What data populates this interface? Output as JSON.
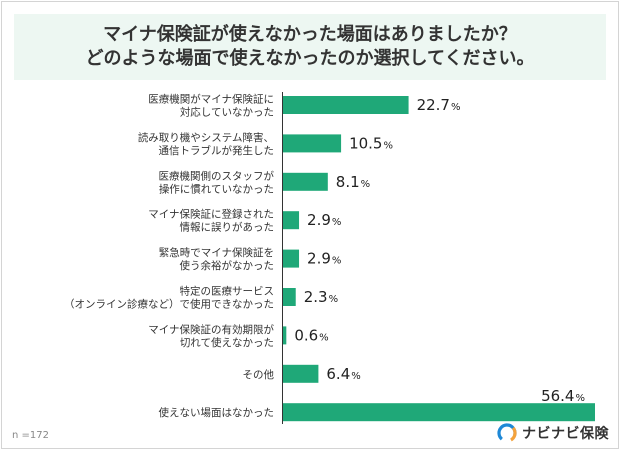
{
  "title": {
    "line1": "マイナ保険証が使えなかった場面はありましたか？",
    "line2": "どのような場面で使えなかったのか選択してください。"
  },
  "sample_note": "n =172",
  "brand": {
    "name": "ナビナビ保険",
    "accent_blue": "#1e88d6",
    "accent_orange": "#f4a23c"
  },
  "colors": {
    "bar": "#1fa878",
    "title_bg": "#edf7f2"
  },
  "chart_data": {
    "type": "bar",
    "orientation": "horizontal",
    "unit": "%",
    "xlim": [
      0,
      56.4
    ],
    "categories": [
      [
        "医療機関がマイナ保険証に",
        "対応していなかった"
      ],
      [
        "読み取り機やシステム障害、",
        "通信トラブルが発生した"
      ],
      [
        "医療機関側のスタッフが",
        "操作に慣れていなかった"
      ],
      [
        "マイナ保険証に登録された",
        "情報に誤りがあった"
      ],
      [
        "緊急時でマイナ保険証を",
        "使う余裕がなかった"
      ],
      [
        "特定の医療サービス",
        "（オンライン診療など）で使用できなかった"
      ],
      [
        "マイナ保険証の有効期限が",
        "切れて使えなかった"
      ],
      [
        "その他"
      ],
      [
        "使えない場面はなかった"
      ]
    ],
    "values": [
      22.7,
      10.5,
      8.1,
      2.9,
      2.9,
      2.3,
      0.6,
      6.4,
      56.4
    ],
    "value_labels": [
      "22.7",
      "10.5",
      "8.1",
      "2.9",
      "2.9",
      "2.3",
      "0.6",
      "6.4",
      "56.4"
    ]
  }
}
